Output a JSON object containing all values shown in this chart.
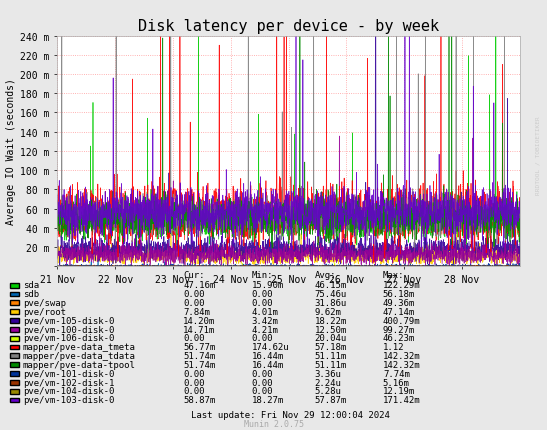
{
  "title": "Disk latency per device - by week",
  "ylabel": "Average IO Wait (seconds)",
  "background_color": "#e8e8e8",
  "plot_bg_color": "#ffffff",
  "grid_color": "#ff9999",
  "title_fontsize": 11,
  "ymax": 240,
  "yticks": [
    0,
    20,
    40,
    60,
    80,
    100,
    120,
    140,
    160,
    180,
    200,
    220,
    240
  ],
  "ytick_labels": [
    "",
    "20 m",
    "40 m",
    "60 m",
    "80 m",
    "100 m",
    "120 m",
    "140 m",
    "160 m",
    "180 m",
    "200 m",
    "220 m",
    "240 m"
  ],
  "xtick_labels": [
    "21 Nov",
    "22 Nov",
    "23 Nov",
    "24 Nov",
    "25 Nov",
    "26 Nov",
    "27 Nov",
    "28 Nov"
  ],
  "watermark": "RRDTOOL / TOBIOETIKER",
  "footer": "Munin 2.0.75",
  "last_update": "Last update: Fri Nov 29 12:00:04 2024",
  "legend_entries": [
    {
      "label": "sda",
      "color": "#00cc00",
      "cur": "47.16m",
      "min": "15.90m",
      "avg": "46.15m",
      "max": "122.29m"
    },
    {
      "label": "sdb",
      "color": "#0066b3",
      "cur": "0.00",
      "min": "0.00",
      "avg": "75.46u",
      "max": "56.18m"
    },
    {
      "label": "pve/swap",
      "color": "#ff8000",
      "cur": "0.00",
      "min": "0.00",
      "avg": "31.86u",
      "max": "49.36m"
    },
    {
      "label": "pve/root",
      "color": "#ffcc00",
      "cur": "7.84m",
      "min": "4.01m",
      "avg": "9.62m",
      "max": "47.14m"
    },
    {
      "label": "pve/vm-105-disk-0",
      "color": "#330099",
      "cur": "14.20m",
      "min": "3.42m",
      "avg": "18.22m",
      "max": "400.79m"
    },
    {
      "label": "pve/vm-100-disk-0",
      "color": "#990099",
      "cur": "14.71m",
      "min": "4.21m",
      "avg": "12.50m",
      "max": "99.27m"
    },
    {
      "label": "pve/vm-106-disk-0",
      "color": "#ccff00",
      "cur": "0.00",
      "min": "0.00",
      "avg": "20.04u",
      "max": "46.23m"
    },
    {
      "label": "mapper/pve-data_tmeta",
      "color": "#ff0000",
      "cur": "56.77m",
      "min": "174.62u",
      "avg": "57.18m",
      "max": "1.12"
    },
    {
      "label": "mapper/pve-data_tdata",
      "color": "#808080",
      "cur": "51.74m",
      "min": "16.44m",
      "avg": "51.11m",
      "max": "142.32m"
    },
    {
      "label": "mapper/pve-data-tpool",
      "color": "#008a00",
      "cur": "51.74m",
      "min": "16.44m",
      "avg": "51.11m",
      "max": "142.32m"
    },
    {
      "label": "pve/vm-101-disk-0",
      "color": "#003399",
      "cur": "0.00",
      "min": "0.00",
      "avg": "3.36u",
      "max": "7.74m"
    },
    {
      "label": "pve/vm-102-disk-1",
      "color": "#993300",
      "cur": "0.00",
      "min": "0.00",
      "avg": "2.24u",
      "max": "5.16m"
    },
    {
      "label": "pve/vm-104-disk-0",
      "color": "#998800",
      "cur": "0.00",
      "min": "0.00",
      "avg": "5.28u",
      "max": "12.19m"
    },
    {
      "label": "pve/vm-103-disk-0",
      "color": "#6600cc",
      "cur": "58.87m",
      "min": "18.27m",
      "avg": "57.87m",
      "max": "171.42m"
    }
  ]
}
